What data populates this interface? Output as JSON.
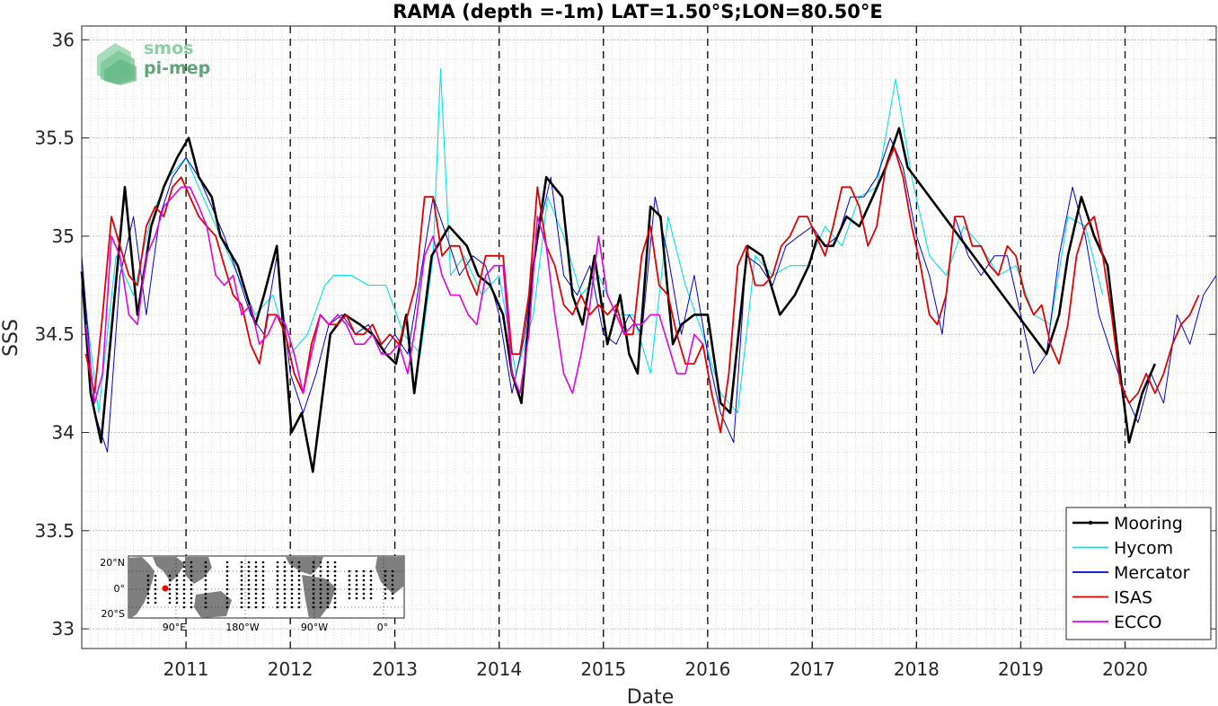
{
  "chart_data": {
    "type": "line",
    "title": "RAMA (depth =-1m) LAT=1.50°S;LON=80.50°E",
    "xlabel": "Date",
    "ylabel": "SSS",
    "x_range": [
      "2010-01-01",
      "2020-11-15"
    ],
    "ylim": [
      32.9,
      36.07
    ],
    "y_ticks": [
      33,
      33.5,
      34,
      34.5,
      35,
      35.5,
      36
    ],
    "y_tick_labels": [
      "33",
      "33.5",
      "34",
      "34.5",
      "35",
      "35.5",
      "36"
    ],
    "x_ticks": [
      "2011-01-01",
      "2012-01-01",
      "2013-01-01",
      "2014-01-01",
      "2015-01-01",
      "2016-01-01",
      "2017-01-01",
      "2018-01-01",
      "2019-01-01",
      "2020-01-01"
    ],
    "x_tick_labels": [
      "2011",
      "2012",
      "2013",
      "2014",
      "2015",
      "2016",
      "2017",
      "2018",
      "2019",
      "2020"
    ],
    "year_divider_lines": "dashed black vertical at each Jan 1",
    "grid": "minor dotted gray",
    "legend_position": "bottom-right",
    "series": [
      {
        "name": "Mooring",
        "color": "#000000",
        "x": [
          "2010-01-01",
          "2010-02-01",
          "2010-03-10",
          "2010-04-20",
          "2010-06-01",
          "2010-07-15",
          "2010-09-01",
          "2010-10-15",
          "2010-12-01",
          "2011-01-10",
          "2011-02-15",
          "2011-04-01",
          "2011-05-01",
          "2011-07-01",
          "2011-09-01",
          "2011-10-01",
          "2011-11-15",
          "2012-01-05",
          "2012-02-10",
          "2012-03-20",
          "2012-05-20",
          "2012-07-10",
          "2012-09-01",
          "2012-10-15",
          "2012-12-01",
          "2013-01-05",
          "2013-02-10",
          "2013-03-10",
          "2013-05-10",
          "2013-07-10",
          "2013-09-10",
          "2013-10-20",
          "2013-12-01",
          "2014-01-15",
          "2014-02-15",
          "2014-03-20",
          "2014-05-01",
          "2014-06-15",
          "2014-08-10",
          "2014-09-15",
          "2014-10-20",
          "2014-12-01",
          "2015-01-15",
          "2015-03-01",
          "2015-04-01",
          "2015-05-01",
          "2015-06-15",
          "2015-07-20",
          "2015-09-01",
          "2015-10-01",
          "2015-11-15",
          "2016-01-01",
          "2016-02-15",
          "2016-03-20",
          "2016-05-20",
          "2016-07-10",
          "2016-09-10",
          "2016-11-01",
          "2016-12-20",
          "2017-01-20",
          "2017-02-15",
          "2017-03-15",
          "2017-05-01",
          "2017-06-15",
          "2017-08-01",
          "2017-09-15",
          "2017-11-01",
          "2017-12-01",
          "2019-04-01",
          "2019-05-15",
          "2019-06-15",
          "2019-08-01",
          "2019-09-15",
          "2019-11-01",
          "2019-12-15",
          "2020-01-15",
          "2020-03-01",
          "2020-04-15"
        ],
        "y": [
          34.82,
          34.2,
          33.95,
          34.6,
          35.25,
          34.6,
          35.05,
          35.25,
          35.4,
          35.5,
          35.3,
          35.2,
          35.0,
          34.85,
          34.55,
          34.7,
          34.95,
          34.0,
          34.1,
          33.8,
          34.5,
          34.6,
          34.55,
          34.5,
          34.4,
          34.35,
          34.6,
          34.2,
          34.9,
          35.05,
          34.95,
          34.8,
          34.75,
          34.6,
          34.3,
          34.15,
          34.85,
          35.3,
          35.2,
          34.7,
          34.55,
          34.9,
          34.45,
          34.7,
          34.4,
          34.3,
          35.15,
          35.1,
          34.45,
          34.55,
          34.6,
          34.6,
          34.15,
          34.1,
          34.95,
          34.9,
          34.6,
          34.7,
          34.85,
          35.0,
          34.95,
          34.95,
          35.1,
          35.05,
          35.2,
          35.35,
          35.55,
          35.35,
          34.4,
          34.6,
          34.9,
          35.2,
          35.0,
          34.85,
          34.3,
          33.95,
          34.2,
          34.35
        ]
      },
      {
        "name": "Hycom",
        "color": "#00e5ee",
        "x": [
          "2010-01-01",
          "2010-03-01",
          "2010-05-01",
          "2010-07-01",
          "2010-09-01",
          "2010-11-01",
          "2011-01-01",
          "2011-03-01",
          "2011-05-01",
          "2011-07-01",
          "2011-09-01",
          "2011-11-01",
          "2012-01-01",
          "2012-03-01",
          "2012-05-01",
          "2012-06-01",
          "2012-08-01",
          "2012-10-01",
          "2012-12-01",
          "2013-02-01",
          "2013-04-01",
          "2013-05-15",
          "2013-06-10",
          "2013-07-15",
          "2013-09-01",
          "2013-11-01",
          "2014-01-01",
          "2014-03-01",
          "2014-05-01",
          "2014-06-20",
          "2014-08-15",
          "2014-10-15",
          "2014-12-15",
          "2015-02-15",
          "2015-04-15",
          "2015-06-15",
          "2015-08-15",
          "2015-10-15",
          "2015-12-15",
          "2016-02-15",
          "2016-04-15",
          "2016-06-15",
          "2016-08-15",
          "2016-10-15",
          "2016-12-15",
          "2017-02-15",
          "2017-04-15",
          "2017-06-15",
          "2017-08-15",
          "2017-10-20",
          "2017-12-15",
          "2018-02-15",
          "2018-04-15",
          "2018-06-15",
          "2018-08-15",
          "2018-10-15",
          "2018-12-15",
          "2019-02-15",
          "2019-04-15",
          "2019-06-15",
          "2019-08-15",
          "2019-10-15"
        ],
        "y": [
          34.8,
          34.1,
          34.9,
          34.7,
          35.1,
          35.3,
          35.4,
          35.2,
          35.0,
          34.8,
          34.6,
          34.7,
          34.4,
          34.5,
          34.75,
          34.8,
          34.8,
          34.75,
          34.75,
          34.5,
          34.4,
          34.9,
          35.85,
          34.8,
          34.9,
          34.7,
          34.8,
          34.3,
          34.6,
          35.2,
          35.0,
          34.7,
          34.8,
          34.6,
          34.6,
          34.3,
          35.1,
          34.75,
          34.5,
          34.2,
          34.1,
          34.9,
          34.8,
          34.85,
          34.85,
          35.05,
          34.95,
          35.2,
          35.25,
          35.8,
          35.3,
          34.9,
          34.8,
          35.05,
          34.95,
          34.8,
          34.85,
          34.6,
          34.55,
          35.1,
          35.05,
          34.7
        ]
      },
      {
        "name": "Mercator",
        "color": "#0000d9",
        "x": [
          "2010-01-01",
          "2010-02-15",
          "2010-04-01",
          "2010-05-15",
          "2010-07-01",
          "2010-08-15",
          "2010-10-01",
          "2010-11-15",
          "2011-01-01",
          "2011-02-15",
          "2011-04-01",
          "2011-05-15",
          "2011-07-01",
          "2011-08-15",
          "2011-10-01",
          "2011-11-15",
          "2012-01-01",
          "2012-02-15",
          "2012-04-01",
          "2012-05-15",
          "2012-07-01",
          "2012-08-15",
          "2012-10-01",
          "2012-11-15",
          "2013-01-01",
          "2013-02-15",
          "2013-04-01",
          "2013-05-15",
          "2013-07-01",
          "2013-08-15",
          "2013-10-01",
          "2013-11-15",
          "2014-01-01",
          "2014-02-15",
          "2014-04-01",
          "2014-05-15",
          "2014-07-01",
          "2014-08-15",
          "2014-10-01",
          "2014-11-15",
          "2015-01-01",
          "2015-02-15",
          "2015-04-01",
          "2015-05-15",
          "2015-07-01",
          "2015-08-15",
          "2015-10-01",
          "2015-11-15",
          "2016-01-01",
          "2016-02-15",
          "2016-04-01",
          "2016-05-15",
          "2016-07-01",
          "2016-08-15",
          "2016-10-01",
          "2016-11-15",
          "2017-01-01",
          "2017-02-15",
          "2017-04-01",
          "2017-05-15",
          "2017-07-01",
          "2017-08-15",
          "2017-10-01",
          "2017-11-15",
          "2018-01-01",
          "2018-02-15",
          "2018-04-01",
          "2018-05-15",
          "2018-07-01",
          "2018-08-15",
          "2018-10-01",
          "2018-11-15",
          "2019-01-01",
          "2019-02-15",
          "2019-04-01",
          "2019-05-15",
          "2019-07-01",
          "2019-08-15",
          "2019-10-01",
          "2019-11-15",
          "2020-01-01",
          "2020-02-15",
          "2020-04-01",
          "2020-05-15",
          "2020-07-01",
          "2020-08-15",
          "2020-10-01",
          "2020-11-15"
        ],
        "y": [
          34.9,
          34.1,
          33.9,
          34.8,
          35.1,
          34.6,
          35.1,
          35.3,
          35.4,
          35.3,
          35.15,
          35.0,
          34.8,
          34.6,
          34.5,
          34.9,
          34.3,
          34.1,
          34.3,
          34.55,
          34.6,
          34.5,
          34.55,
          34.4,
          34.5,
          34.4,
          34.8,
          35.2,
          35.0,
          34.8,
          34.9,
          34.85,
          34.6,
          34.2,
          34.5,
          35.0,
          35.3,
          34.8,
          34.7,
          34.85,
          34.5,
          34.45,
          34.6,
          34.5,
          35.2,
          34.9,
          34.5,
          34.8,
          34.4,
          34.1,
          33.95,
          34.9,
          34.85,
          34.75,
          34.95,
          35.0,
          35.05,
          34.95,
          35.0,
          35.2,
          35.2,
          35.3,
          35.5,
          35.35,
          35.0,
          34.8,
          34.5,
          35.1,
          34.9,
          34.8,
          34.9,
          34.9,
          34.6,
          34.3,
          34.4,
          34.9,
          35.25,
          35.0,
          34.6,
          34.4,
          34.2,
          34.05,
          34.3,
          34.15,
          34.6,
          34.45,
          34.7,
          34.8
        ]
      },
      {
        "name": "ISAS",
        "color": "#e60000",
        "x": [
          "2010-01-15",
          "2010-02-15",
          "2010-03-15",
          "2010-04-15",
          "2010-05-15",
          "2010-06-15",
          "2010-07-15",
          "2010-08-15",
          "2010-09-15",
          "2010-10-15",
          "2010-11-15",
          "2010-12-15",
          "2011-01-15",
          "2011-02-15",
          "2011-03-15",
          "2011-04-15",
          "2011-05-15",
          "2011-06-15",
          "2011-07-15",
          "2011-08-15",
          "2011-09-15",
          "2011-10-15",
          "2011-11-15",
          "2011-12-15",
          "2012-01-15",
          "2012-02-15",
          "2012-03-15",
          "2012-04-15",
          "2012-05-15",
          "2012-06-15",
          "2012-07-15",
          "2012-08-15",
          "2012-09-15",
          "2012-10-15",
          "2012-11-15",
          "2012-12-15",
          "2013-01-15",
          "2013-02-15",
          "2013-03-15",
          "2013-04-15",
          "2013-05-15",
          "2013-06-15",
          "2013-07-15",
          "2013-08-15",
          "2013-09-15",
          "2013-10-15",
          "2013-11-15",
          "2013-12-15",
          "2014-01-15",
          "2014-02-15",
          "2014-03-15",
          "2014-04-15",
          "2014-05-15",
          "2014-06-15",
          "2014-07-15",
          "2014-08-15",
          "2014-09-15",
          "2014-10-15",
          "2014-11-15",
          "2014-12-15",
          "2015-01-15",
          "2015-02-15",
          "2015-03-15",
          "2015-04-15",
          "2015-05-15",
          "2015-06-15",
          "2015-07-15",
          "2015-08-15",
          "2015-09-15",
          "2015-10-15",
          "2015-11-15",
          "2015-12-15",
          "2016-01-15",
          "2016-02-15",
          "2016-03-15",
          "2016-04-15",
          "2016-05-15",
          "2016-06-15",
          "2016-07-15",
          "2016-08-15",
          "2016-09-15",
          "2016-10-15",
          "2016-11-15",
          "2016-12-15",
          "2017-01-15",
          "2017-02-15",
          "2017-03-15",
          "2017-04-15",
          "2017-05-15",
          "2017-06-15",
          "2017-07-15",
          "2017-08-15",
          "2017-09-15",
          "2017-10-15",
          "2017-11-15",
          "2017-12-15",
          "2018-01-15",
          "2018-02-15",
          "2018-03-15",
          "2018-04-15",
          "2018-05-15",
          "2018-06-15",
          "2018-07-15",
          "2018-08-15",
          "2018-09-15",
          "2018-10-15",
          "2018-11-15",
          "2018-12-15",
          "2019-01-15",
          "2019-02-15",
          "2019-03-15",
          "2019-04-15",
          "2019-05-15",
          "2019-06-15",
          "2019-07-15",
          "2019-08-15",
          "2019-09-15",
          "2019-10-15",
          "2019-11-15",
          "2019-12-15",
          "2020-01-15",
          "2020-02-15",
          "2020-03-15",
          "2020-04-15",
          "2020-05-15",
          "2020-06-15",
          "2020-07-15",
          "2020-08-15",
          "2020-09-15"
        ],
        "y": [
          34.4,
          34.2,
          34.6,
          35.1,
          34.95,
          34.8,
          34.75,
          35.05,
          35.15,
          35.1,
          35.25,
          35.3,
          35.2,
          35.1,
          35.05,
          35.0,
          34.85,
          34.7,
          34.65,
          34.45,
          34.35,
          34.6,
          34.6,
          34.5,
          34.3,
          34.2,
          34.45,
          34.6,
          34.55,
          34.55,
          34.6,
          34.5,
          34.5,
          34.55,
          34.45,
          34.5,
          34.45,
          34.6,
          34.75,
          35.2,
          35.2,
          34.9,
          34.95,
          34.95,
          34.8,
          34.7,
          34.9,
          34.9,
          34.9,
          34.4,
          34.4,
          34.7,
          35.25,
          34.95,
          34.85,
          34.65,
          34.6,
          34.7,
          34.6,
          34.65,
          34.6,
          34.65,
          34.5,
          34.5,
          34.9,
          35.05,
          34.75,
          34.7,
          34.5,
          34.35,
          34.35,
          34.45,
          34.2,
          34.0,
          34.3,
          34.85,
          34.95,
          34.75,
          34.75,
          34.8,
          34.95,
          35.0,
          35.1,
          35.1,
          35.0,
          34.9,
          35.05,
          35.25,
          35.25,
          35.15,
          34.95,
          35.05,
          35.35,
          35.45,
          35.3,
          35.05,
          34.85,
          34.6,
          34.55,
          34.7,
          35.1,
          35.1,
          34.95,
          34.95,
          34.85,
          34.8,
          34.95,
          34.9,
          34.7,
          34.6,
          34.65,
          34.45,
          34.35,
          34.55,
          34.9,
          35.05,
          35.1,
          34.9,
          34.6,
          34.25,
          34.15,
          34.2,
          34.3,
          34.2,
          34.3,
          34.45,
          34.55,
          34.6,
          34.7
        ]
      },
      {
        "name": "ECCO",
        "color": "#e600e6",
        "x": [
          "2010-01-15",
          "2010-02-15",
          "2010-03-15",
          "2010-04-15",
          "2010-05-15",
          "2010-06-15",
          "2010-07-15",
          "2010-08-15",
          "2010-09-15",
          "2010-10-15",
          "2010-11-15",
          "2010-12-15",
          "2011-01-15",
          "2011-02-15",
          "2011-03-15",
          "2011-04-15",
          "2011-05-15",
          "2011-06-15",
          "2011-07-15",
          "2011-08-15",
          "2011-09-15",
          "2011-10-15",
          "2011-11-15",
          "2011-12-15",
          "2012-01-15",
          "2012-02-15",
          "2012-03-15",
          "2012-04-15",
          "2012-05-15",
          "2012-06-15",
          "2012-07-15",
          "2012-08-15",
          "2012-09-15",
          "2012-10-15",
          "2012-11-15",
          "2012-12-15",
          "2013-01-15",
          "2013-02-15",
          "2013-03-15",
          "2013-04-15",
          "2013-05-15",
          "2013-06-15",
          "2013-07-15",
          "2013-08-15",
          "2013-09-15",
          "2013-10-15",
          "2013-11-15",
          "2013-12-15",
          "2014-01-15",
          "2014-02-15",
          "2014-03-15",
          "2014-04-15",
          "2014-05-15",
          "2014-06-15",
          "2014-07-15",
          "2014-08-15",
          "2014-09-15",
          "2014-10-15",
          "2014-11-15",
          "2014-12-15",
          "2015-01-15",
          "2015-02-15",
          "2015-03-15",
          "2015-04-15",
          "2015-05-15",
          "2015-06-15",
          "2015-07-15",
          "2015-08-15",
          "2015-09-15",
          "2015-10-15",
          "2015-11-15",
          "2015-12-15"
        ],
        "y": [
          34.55,
          34.15,
          34.3,
          35.0,
          34.9,
          34.6,
          34.55,
          34.9,
          35.0,
          35.15,
          35.2,
          35.25,
          35.25,
          35.15,
          35.05,
          34.8,
          34.75,
          34.8,
          34.6,
          34.65,
          34.45,
          34.5,
          34.6,
          34.55,
          34.4,
          34.2,
          34.4,
          34.6,
          34.55,
          34.6,
          34.55,
          34.45,
          34.45,
          34.5,
          34.4,
          34.4,
          34.45,
          34.3,
          34.55,
          34.9,
          35.0,
          34.8,
          34.7,
          34.7,
          34.6,
          34.55,
          34.8,
          34.85,
          34.85,
          34.3,
          34.2,
          34.5,
          35.1,
          34.95,
          34.6,
          34.3,
          34.2,
          34.4,
          34.65,
          35.0,
          34.7,
          34.6,
          34.5,
          34.55,
          34.55,
          34.6,
          34.6,
          34.45,
          34.3,
          34.3,
          34.5,
          34.45
        ]
      }
    ],
    "inset_map": {
      "lat_labels": [
        "20°N",
        "0°",
        "20°S"
      ],
      "lon_labels": [
        "90°E",
        "180°W",
        "90°W",
        "0°"
      ]
    }
  },
  "logo": {
    "line1": "smos",
    "line2": "pi-mep"
  }
}
